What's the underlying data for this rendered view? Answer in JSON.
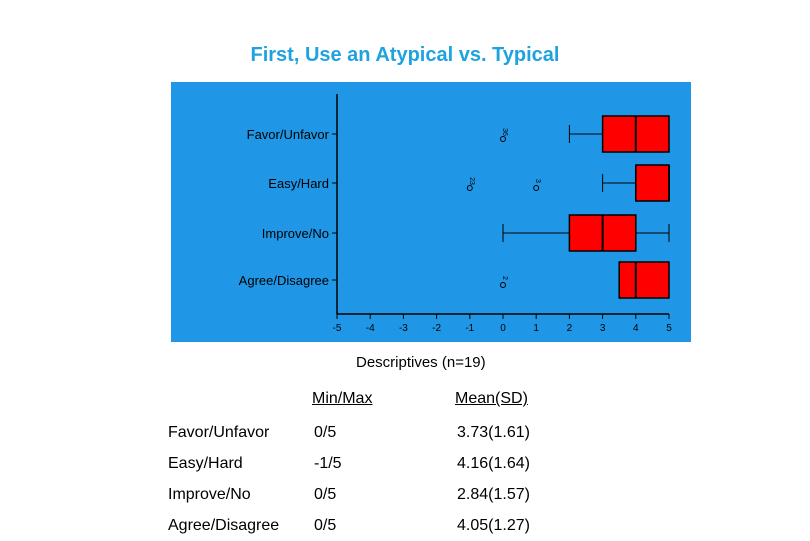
{
  "slide": {
    "title": "First, Use an Atypical vs. Typical"
  },
  "chart_data": {
    "type": "boxplot",
    "background": "#1f97e6",
    "box_color": "#ff0000",
    "categories": [
      "Favor/Unfavor",
      "Easy/Hard",
      "Improve/No",
      "Agree/Disagree"
    ],
    "xlim": [
      -5,
      5
    ],
    "x_ticks": [
      "-5",
      "-4",
      "-3",
      "-2",
      "-1",
      "0",
      "1",
      "2",
      "3",
      "4",
      "5"
    ],
    "boxes": [
      {
        "category": "Favor/Unfavor",
        "whisker_low": 2,
        "q1": 3,
        "median": 4,
        "q3": 5,
        "whisker_high": 5,
        "outliers": [
          {
            "value": 0,
            "label": "36"
          }
        ]
      },
      {
        "category": "Easy/Hard",
        "whisker_low": 3,
        "q1": 4,
        "median": 5,
        "q3": 5,
        "whisker_high": 5,
        "outliers": [
          {
            "value": -1,
            "label": "23"
          },
          {
            "value": 1,
            "label": "3"
          }
        ]
      },
      {
        "category": "Improve/No",
        "whisker_low": 0,
        "q1": 2,
        "median": 3,
        "q3": 4,
        "whisker_high": 5,
        "outliers": []
      },
      {
        "category": "Agree/Disagree",
        "whisker_low": 3.5,
        "q1": 3.5,
        "median": 4,
        "q3": 5,
        "whisker_high": 5,
        "outliers": [
          {
            "value": 0,
            "label": "2"
          }
        ]
      }
    ]
  },
  "descriptives": {
    "caption": "Descriptives (n=19)",
    "headers": {
      "minmax": "Min/Max",
      "meansd": "Mean(SD)"
    },
    "rows": [
      {
        "name": "Favor/Unfavor",
        "minmax": "0/5",
        "meansd": "3.73(1.61)"
      },
      {
        "name": "Easy/Hard",
        "minmax": "-1/5",
        "meansd": "4.16(1.64)"
      },
      {
        "name": "Improve/No",
        "minmax": "0/5",
        "meansd": "2.84(1.57)"
      },
      {
        "name": "Agree/Disagree",
        "minmax": "0/5",
        "meansd": "4.05(1.27)"
      }
    ]
  }
}
